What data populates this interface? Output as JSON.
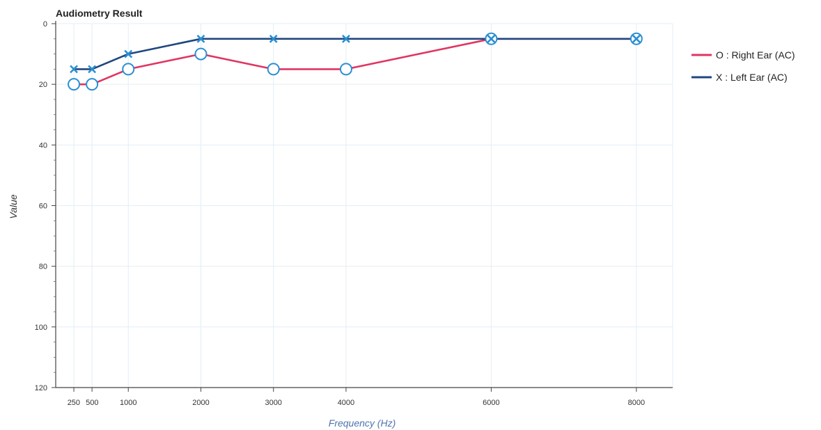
{
  "chart_data": {
    "type": "line",
    "title": "Audiometry Result",
    "xlabel": "Frequency (Hz)",
    "ylabel": "Value",
    "xlim": [
      0,
      8500
    ],
    "ylim": [
      0,
      120
    ],
    "y_inverted": true,
    "x_ticks": [
      250,
      500,
      1000,
      2000,
      3000,
      4000,
      6000,
      8000
    ],
    "x_tick_labels": [
      "250",
      "500",
      "1000",
      "2000",
      "3000",
      "4000",
      "6000",
      "8000"
    ],
    "y_ticks": [
      0,
      20,
      40,
      60,
      80,
      100,
      120
    ],
    "grid": true,
    "legend_position": "right",
    "series": [
      {
        "name": "O : Right Ear (AC)",
        "marker": "circle",
        "line_color": "#e03562",
        "marker_color": "#2a8fd2",
        "x": [
          250,
          500,
          1000,
          2000,
          3000,
          4000,
          6000,
          8000
        ],
        "y": [
          20,
          20,
          15,
          10,
          15,
          15,
          5,
          5
        ]
      },
      {
        "name": "X : Left Ear (AC)",
        "marker": "x",
        "line_color": "#20467f",
        "marker_color": "#2a8fd2",
        "x": [
          250,
          500,
          1000,
          2000,
          3000,
          4000,
          6000,
          8000
        ],
        "y": [
          15,
          15,
          10,
          5,
          5,
          5,
          5,
          5
        ]
      }
    ]
  }
}
